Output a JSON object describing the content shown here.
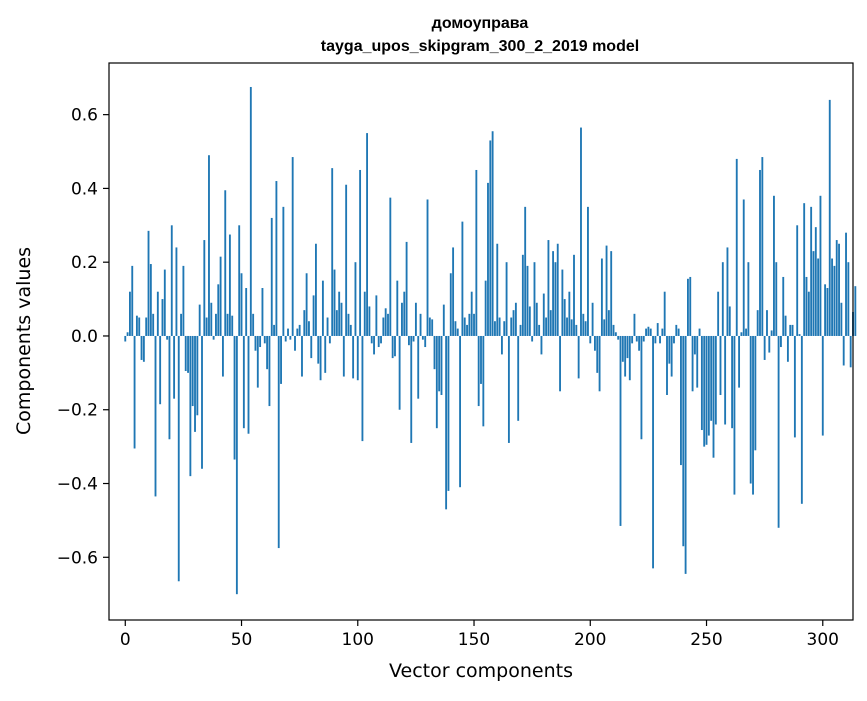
{
  "chart_data": {
    "type": "bar",
    "title": "домоуправа",
    "subtitle": "tayga_upos_skipgram_300_2_2019 model",
    "xlabel": "Vector components",
    "ylabel": "Components values",
    "xlim": [
      -7,
      313
    ],
    "ylim": [
      -0.77,
      0.74
    ],
    "xticks": [
      0,
      50,
      100,
      150,
      200,
      250,
      300
    ],
    "yticks": [
      -0.6,
      -0.4,
      -0.2,
      0.0,
      0.2,
      0.4,
      0.6
    ],
    "xtick_labels": [
      "0",
      "50",
      "100",
      "150",
      "200",
      "250",
      "300"
    ],
    "ytick_labels": [
      "−0.6",
      "−0.4",
      "−0.2",
      "0.0",
      "0.2",
      "0.4",
      "0.6"
    ],
    "bar_color": "#1f77b4",
    "grid": false,
    "legend": null,
    "values": [
      -0.015,
      0.01,
      0.12,
      0.19,
      -0.305,
      0.055,
      0.05,
      -0.065,
      -0.07,
      0.05,
      0.285,
      0.195,
      0.06,
      -0.435,
      0.12,
      -0.185,
      0.1,
      0.18,
      -0.01,
      -0.28,
      0.3,
      -0.17,
      0.24,
      -0.665,
      0.06,
      0.19,
      -0.095,
      -0.1,
      -0.38,
      -0.19,
      -0.26,
      -0.215,
      0.085,
      -0.36,
      0.26,
      0.05,
      0.49,
      0.09,
      -0.01,
      0.06,
      0.14,
      0.215,
      -0.11,
      0.395,
      0.06,
      0.275,
      0.055,
      -0.335,
      -0.7,
      0.3,
      0.17,
      -0.25,
      0.13,
      -0.265,
      0.675,
      0.06,
      -0.04,
      -0.14,
      -0.03,
      0.13,
      -0.02,
      -0.09,
      -0.19,
      0.32,
      0.03,
      0.42,
      -0.575,
      -0.13,
      0.35,
      -0.015,
      0.02,
      -0.01,
      0.485,
      -0.04,
      0.02,
      0.03,
      -0.11,
      0.07,
      0.17,
      0.04,
      -0.06,
      0.11,
      0.25,
      -0.075,
      -0.12,
      0.15,
      -0.1,
      0.05,
      -0.02,
      0.455,
      0.18,
      0.07,
      0.12,
      0.09,
      -0.11,
      0.41,
      0.06,
      0.03,
      -0.115,
      0.2,
      -0.12,
      0.45,
      -0.285,
      0.12,
      0.55,
      0.08,
      -0.02,
      -0.05,
      0.11,
      -0.03,
      -0.02,
      0.05,
      0.075,
      0.06,
      0.375,
      -0.06,
      -0.055,
      0.15,
      -0.2,
      0.09,
      0.12,
      0.255,
      -0.025,
      -0.29,
      -0.015,
      0.09,
      -0.17,
      0.06,
      -0.01,
      -0.03,
      0.37,
      0.05,
      0.045,
      -0.09,
      -0.25,
      -0.15,
      -0.16,
      0.085,
      -0.47,
      -0.42,
      0.17,
      0.24,
      0.04,
      0.02,
      -0.41,
      0.31,
      0.05,
      0.03,
      0.06,
      0.12,
      0.06,
      0.45,
      -0.19,
      -0.13,
      -0.245,
      0.15,
      0.415,
      0.53,
      0.555,
      0.04,
      0.25,
      0.05,
      -0.05,
      0.04,
      0.2,
      -0.29,
      0.05,
      0.07,
      0.09,
      -0.23,
      0.03,
      0.22,
      0.35,
      0.19,
      0.08,
      -0.015,
      0.2,
      0.09,
      0.03,
      -0.05,
      0.115,
      0.05,
      0.26,
      0.07,
      0.23,
      0.2,
      0.25,
      -0.15,
      0.18,
      0.1,
      0.05,
      0.12,
      0.045,
      0.22,
      0.03,
      -0.115,
      0.565,
      0.06,
      0.04,
      0.35,
      -0.02,
      0.09,
      -0.04,
      -0.1,
      -0.15,
      0.21,
      0.045,
      0.245,
      0.07,
      0.23,
      0.03,
      0.01,
      -0.01,
      -0.515,
      -0.07,
      -0.11,
      -0.06,
      -0.12,
      -0.02,
      0.06,
      -0.015,
      -0.04,
      -0.28,
      -0.015,
      0.02,
      0.025,
      0.02,
      -0.63,
      -0.02,
      0.035,
      -0.02,
      0.02,
      0.12,
      -0.16,
      -0.075,
      -0.11,
      -0.02,
      0.03,
      0.02,
      -0.35,
      -0.57,
      -0.645,
      0.155,
      0.16,
      -0.15,
      -0.05,
      -0.14,
      0.02,
      -0.255,
      -0.3,
      -0.295,
      -0.27,
      -0.23,
      -0.33,
      -0.24,
      0.12,
      -0.16,
      0.2,
      -0.24,
      0.24,
      0.08,
      -0.25,
      -0.43,
      0.48,
      -0.14,
      0.01,
      0.37,
      0.02,
      0.2,
      -0.4,
      -0.43,
      -0.31,
      0.07,
      0.45,
      0.485,
      -0.065,
      0.07,
      -0.045,
      0.015,
      0.38,
      0.2,
      -0.52,
      -0.03,
      0.16,
      0.055,
      -0.07,
      0.03,
      0.03,
      -0.275,
      0.3,
      0.005,
      -0.455,
      0.36,
      0.16,
      0.12,
      0.35,
      0.23,
      0.295,
      0.21,
      0.38,
      -0.27,
      0.14,
      0.13,
      0.64,
      0.21,
      0.19,
      0.26,
      0.25,
      0.09,
      -0.08,
      0.28,
      0.2,
      -0.085,
      0.065,
      0.135
    ]
  }
}
